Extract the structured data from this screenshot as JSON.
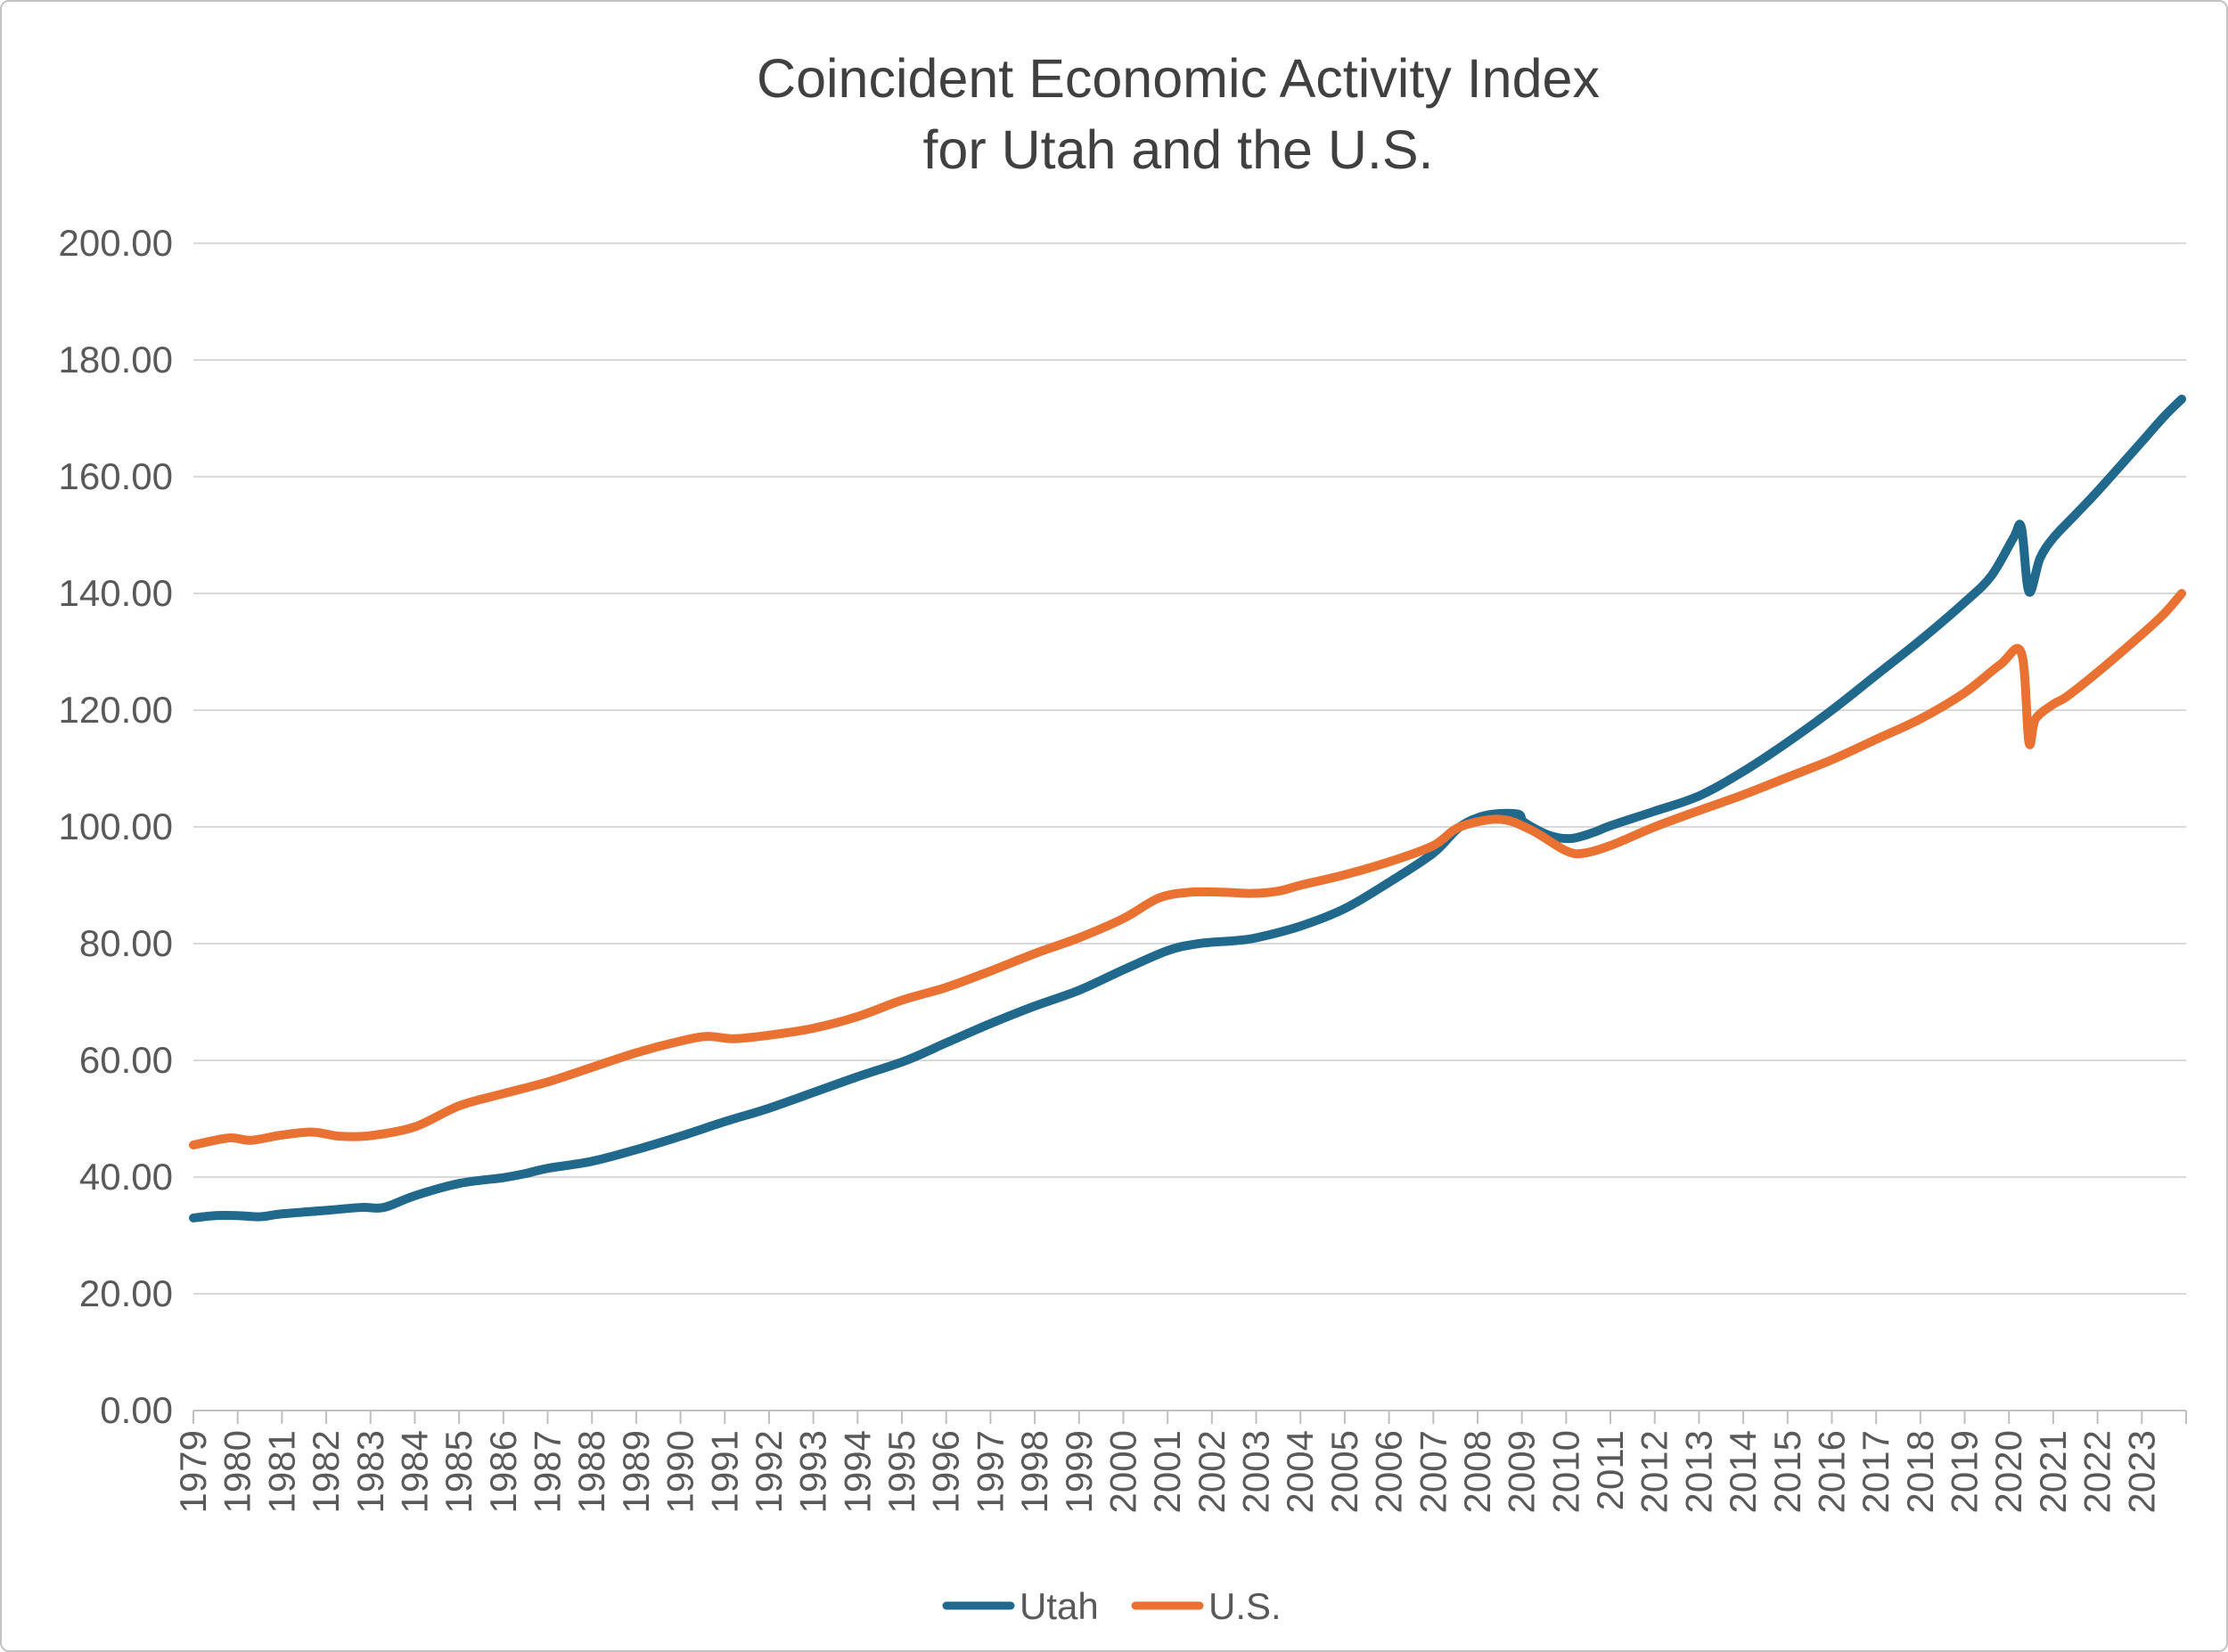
{
  "window": {
    "background": "#FFFFFF",
    "border_color": "#C3C3C3"
  },
  "title": {
    "line1": "Coincident Economic Activity Index",
    "line2": "for Utah and the U.S.",
    "color": "#404040"
  },
  "axes": {
    "y": {
      "tick_labels": [
        "0.00",
        "20.00",
        "40.00",
        "60.00",
        "80.00",
        "100.00",
        "120.00",
        "140.00",
        "160.00",
        "180.00",
        "200.00"
      ],
      "label_color": "#595959",
      "gridline_color": "#D9D9D9"
    },
    "x": {
      "tick_labels": [
        "1979",
        "1980",
        "1981",
        "1982",
        "1983",
        "1984",
        "1985",
        "1986",
        "1987",
        "1988",
        "1989",
        "1990",
        "1991",
        "1992",
        "1993",
        "1994",
        "1995",
        "1996",
        "1997",
        "1998",
        "1999",
        "2000",
        "2001",
        "2002",
        "2003",
        "2004",
        "2005",
        "2006",
        "2007",
        "2008",
        "2009",
        "2010",
        "2011",
        "2012",
        "2013",
        "2014",
        "2015",
        "2016",
        "2017",
        "2018",
        "2019",
        "2020",
        "2021",
        "2022",
        "2023"
      ],
      "label_color": "#595959",
      "axis_color": "#BFBFBF"
    }
  },
  "legend": {
    "text_color": "#595959",
    "items": [
      {
        "label": "Utah",
        "color": "#20688C"
      },
      {
        "label": "U.S.",
        "color": "#E97132"
      }
    ]
  },
  "chart_data": {
    "type": "line",
    "title": "Coincident Economic Activity Index for Utah and the U.S.",
    "xlabel": "",
    "ylabel": "",
    "x_domain": [
      1979,
      2024
    ],
    "ylim": [
      0,
      200
    ],
    "y_tick_step": 20,
    "grid": "horizontal",
    "legend_position": "bottom",
    "series": [
      {
        "name": "Utah",
        "color": "#20688C",
        "points": [
          [
            1979.0,
            33.0
          ],
          [
            1979.5,
            33.4
          ],
          [
            1980.0,
            33.4
          ],
          [
            1980.5,
            33.2
          ],
          [
            1981.0,
            33.7
          ],
          [
            1982.0,
            34.3
          ],
          [
            1982.8,
            34.8
          ],
          [
            1983.3,
            34.8
          ],
          [
            1984.0,
            36.8
          ],
          [
            1985.0,
            38.9
          ],
          [
            1986.0,
            39.9
          ],
          [
            1986.5,
            40.6
          ],
          [
            1987.0,
            41.5
          ],
          [
            1988.0,
            42.7
          ],
          [
            1989.0,
            44.7
          ],
          [
            1990.0,
            47.0
          ],
          [
            1991.0,
            49.5
          ],
          [
            1992.0,
            51.8
          ],
          [
            1993.0,
            54.5
          ],
          [
            1994.0,
            57.2
          ],
          [
            1995.1,
            60.0
          ],
          [
            1996.0,
            63.0
          ],
          [
            1997.0,
            66.3
          ],
          [
            1998.0,
            69.3
          ],
          [
            1999.0,
            72.0
          ],
          [
            2000.0,
            75.5
          ],
          [
            2001.0,
            78.8
          ],
          [
            2001.7,
            80.0
          ],
          [
            2002.5,
            80.5
          ],
          [
            2003.0,
            81.0
          ],
          [
            2004.0,
            83.0
          ],
          [
            2005.0,
            86.0
          ],
          [
            2006.0,
            90.5
          ],
          [
            2007.0,
            95.5
          ],
          [
            2007.6,
            100.0
          ],
          [
            2008.2,
            102.0
          ],
          [
            2008.9,
            102.2
          ],
          [
            2009.05,
            100.8
          ],
          [
            2009.6,
            98.6
          ],
          [
            2010.1,
            98.0
          ],
          [
            2010.6,
            99.0
          ],
          [
            2011.0,
            100.2
          ],
          [
            2012.0,
            102.7
          ],
          [
            2013.0,
            105.3
          ],
          [
            2014.0,
            109.5
          ],
          [
            2015.0,
            114.5
          ],
          [
            2016.0,
            120.0
          ],
          [
            2017.0,
            126.0
          ],
          [
            2018.0,
            132.0
          ],
          [
            2019.0,
            138.5
          ],
          [
            2019.6,
            143.0
          ],
          [
            2020.1,
            149.5
          ],
          [
            2020.28,
            151.3
          ],
          [
            2020.45,
            140.3
          ],
          [
            2020.7,
            146.0
          ],
          [
            2021.0,
            149.5
          ],
          [
            2021.5,
            153.5
          ],
          [
            2022.0,
            157.5
          ],
          [
            2023.0,
            166.0
          ],
          [
            2023.5,
            170.3
          ],
          [
            2023.9,
            173.3
          ]
        ]
      },
      {
        "name": "U.S.",
        "color": "#E97132",
        "points": [
          [
            1979.0,
            45.5
          ],
          [
            1979.8,
            46.7
          ],
          [
            1980.3,
            46.3
          ],
          [
            1981.0,
            47.2
          ],
          [
            1981.7,
            47.7
          ],
          [
            1982.3,
            47.0
          ],
          [
            1983.0,
            47.1
          ],
          [
            1984.0,
            48.6
          ],
          [
            1985.0,
            52.2
          ],
          [
            1986.0,
            54.3
          ],
          [
            1987.0,
            56.3
          ],
          [
            1988.0,
            58.8
          ],
          [
            1989.0,
            61.3
          ],
          [
            1990.0,
            63.3
          ],
          [
            1990.6,
            64.1
          ],
          [
            1991.2,
            63.7
          ],
          [
            1992.0,
            64.3
          ],
          [
            1993.0,
            65.5
          ],
          [
            1994.0,
            67.5
          ],
          [
            1995.0,
            70.3
          ],
          [
            1996.0,
            72.5
          ],
          [
            1997.0,
            75.3
          ],
          [
            1998.0,
            78.3
          ],
          [
            1999.0,
            81.0
          ],
          [
            2000.0,
            84.3
          ],
          [
            2000.8,
            87.8
          ],
          [
            2001.5,
            88.8
          ],
          [
            2002.3,
            88.8
          ],
          [
            2002.9,
            88.6
          ],
          [
            2003.5,
            89.0
          ],
          [
            2004.0,
            90.0
          ],
          [
            2005.0,
            91.8
          ],
          [
            2006.0,
            94.0
          ],
          [
            2007.0,
            96.8
          ],
          [
            2007.6,
            100.0
          ],
          [
            2008.5,
            101.3
          ],
          [
            2009.2,
            99.5
          ],
          [
            2010.0,
            95.9
          ],
          [
            2010.4,
            95.5
          ],
          [
            2011.0,
            96.8
          ],
          [
            2012.0,
            100.0
          ],
          [
            2013.0,
            102.8
          ],
          [
            2014.0,
            105.5
          ],
          [
            2015.0,
            108.5
          ],
          [
            2016.0,
            111.5
          ],
          [
            2017.0,
            115.0
          ],
          [
            2018.0,
            118.5
          ],
          [
            2019.0,
            123.0
          ],
          [
            2019.8,
            127.8
          ],
          [
            2020.28,
            129.8
          ],
          [
            2020.45,
            114.5
          ],
          [
            2020.6,
            118.5
          ],
          [
            2021.0,
            121.0
          ],
          [
            2021.3,
            122.3
          ],
          [
            2022.0,
            126.5
          ],
          [
            2023.0,
            133.0
          ],
          [
            2023.5,
            136.5
          ],
          [
            2023.9,
            140.0
          ]
        ]
      }
    ]
  }
}
